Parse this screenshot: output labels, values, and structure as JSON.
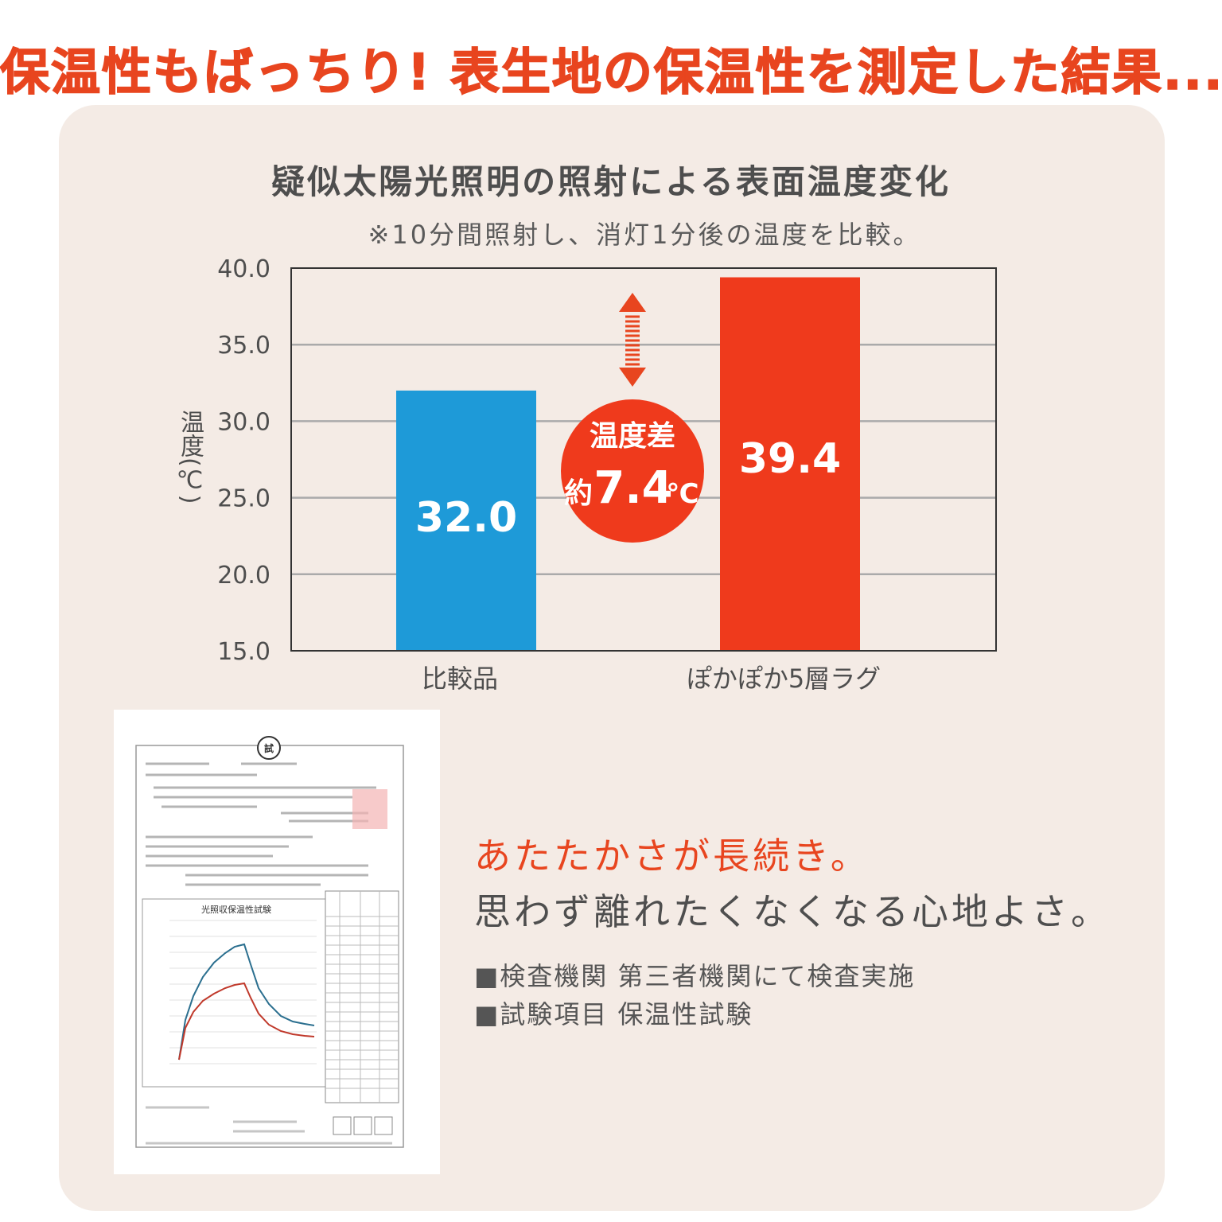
{
  "headline": "保温性もばっちり! 表生地の保温性を測定した結果...",
  "chart_data": {
    "type": "bar",
    "title": "疑似太陽光照明の照射による表面温度変化",
    "subtitle": "※10分間照射し、消灯1分後の温度を比較。",
    "ylabel": "温度(℃)",
    "xlabel": "",
    "categories": [
      "比較品",
      "ぽかぽか5層ラグ"
    ],
    "values": [
      32.0,
      39.4
    ],
    "value_labels": [
      "32.0",
      "39.4"
    ],
    "bar_colors": [
      "#1e9ad8",
      "#ef3a1c"
    ],
    "ylim": [
      15.0,
      40.0
    ],
    "yticks": [
      "40.0",
      "35.0",
      "30.0",
      "25.0",
      "20.0",
      "15.0"
    ],
    "grid": true,
    "annotation": {
      "line1": "温度差",
      "prefix": "約",
      "value": "7.4",
      "unit": "℃"
    }
  },
  "document_image": {
    "kind": "test-report-thumbnail",
    "inner_chart_title": "光照収保温性試験"
  },
  "catch": {
    "line1": "あたたかさが長続き。",
    "line2": "思わず離れたくなくなる心地よさ。"
  },
  "notes": [
    {
      "bullet": "■",
      "label": "検査機関",
      "text": "第三者機関にて検査実施"
    },
    {
      "bullet": "■",
      "label": "試験項目",
      "text": "保温性試験"
    }
  ],
  "colors": {
    "accent": "#e8451f",
    "panel_bg": "#f4ebe5",
    "text": "#4e4e4e"
  }
}
